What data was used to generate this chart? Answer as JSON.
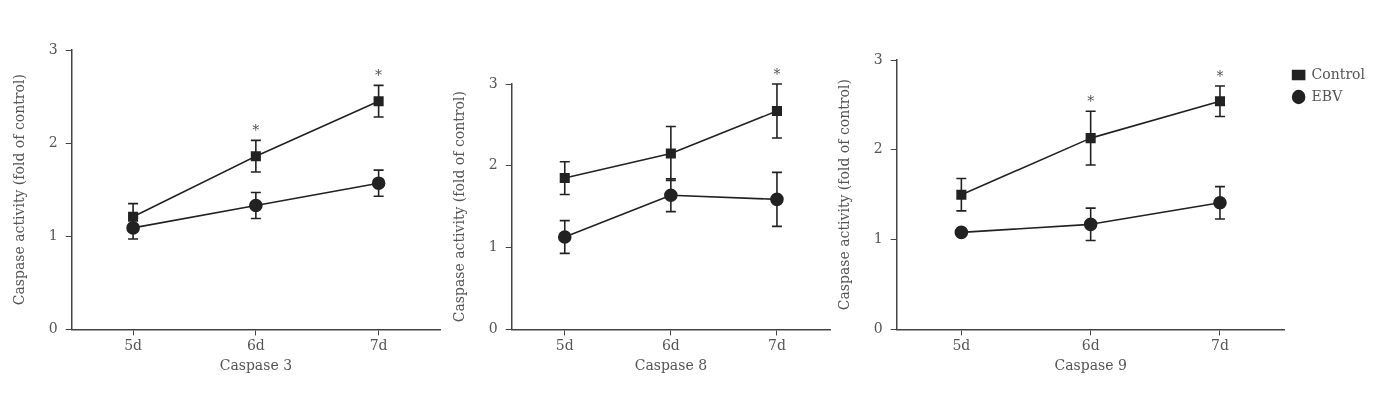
{
  "chart_data": [
    {
      "type": "line",
      "xlabel": "Caspase 3",
      "ylabel": "Caspase activity (fold of control)",
      "categories": [
        "5d",
        "6d",
        "7d"
      ],
      "ylim": [
        0,
        3
      ],
      "yticks": [
        0,
        1,
        2,
        3
      ],
      "grid": false,
      "legend": false,
      "line_style": "solid",
      "series": [
        {
          "color": "#222222",
          "marker": "square",
          "values": [
            1.21,
            1.86,
            2.45
          ],
          "errors": [
            0.14,
            0.17,
            0.17
          ]
        },
        {
          "color": "#222222",
          "marker": "circle",
          "values": [
            1.09,
            1.33,
            1.57
          ],
          "errors": [
            0.12,
            0.14,
            0.14
          ]
        }
      ],
      "annotations": [
        {
          "text": "*",
          "x": "6d",
          "y": 2.03
        },
        {
          "text": "*",
          "x": "7d",
          "y": 2.62
        }
      ]
    },
    {
      "type": "line",
      "xlabel": "Caspase 8",
      "ylabel": "Caspase activity (fold of control)",
      "categories": [
        "5d",
        "6d",
        "7d"
      ],
      "ylim": [
        0,
        3
      ],
      "yticks": [
        0,
        1,
        2,
        3
      ],
      "grid": false,
      "legend": false,
      "line_style": "solid",
      "series": [
        {
          "color": "#222222",
          "marker": "square",
          "values": [
            1.85,
            2.15,
            2.67
          ],
          "errors": [
            0.2,
            0.33,
            0.33
          ]
        },
        {
          "color": "#222222",
          "marker": "circle",
          "values": [
            1.13,
            1.64,
            1.59
          ],
          "errors": [
            0.2,
            0.2,
            0.33
          ]
        }
      ],
      "annotations": [
        {
          "text": "*",
          "x": "7d",
          "y": 3.0
        }
      ]
    },
    {
      "type": "line",
      "xlabel": "Caspase 9",
      "ylabel": "Caspase activity (fold of control)",
      "categories": [
        "5d",
        "6d",
        "7d"
      ],
      "ylim": [
        0,
        3
      ],
      "yticks": [
        0,
        1,
        2,
        3
      ],
      "grid": false,
      "legend": "right",
      "line_style": "solid",
      "series": [
        {
          "name": "Control",
          "color": "#222222",
          "marker": "square",
          "values": [
            1.5,
            2.13,
            2.54
          ],
          "errors": [
            0.18,
            0.3,
            0.17
          ]
        },
        {
          "name": "EBV",
          "color": "#222222",
          "marker": "circle",
          "values": [
            1.08,
            1.17,
            1.41
          ],
          "errors": [
            null,
            0.18,
            0.18
          ]
        }
      ],
      "annotations": [
        {
          "text": "*",
          "x": "6d",
          "y": 2.43
        },
        {
          "text": "*",
          "x": "7d",
          "y": 2.71
        }
      ]
    }
  ]
}
